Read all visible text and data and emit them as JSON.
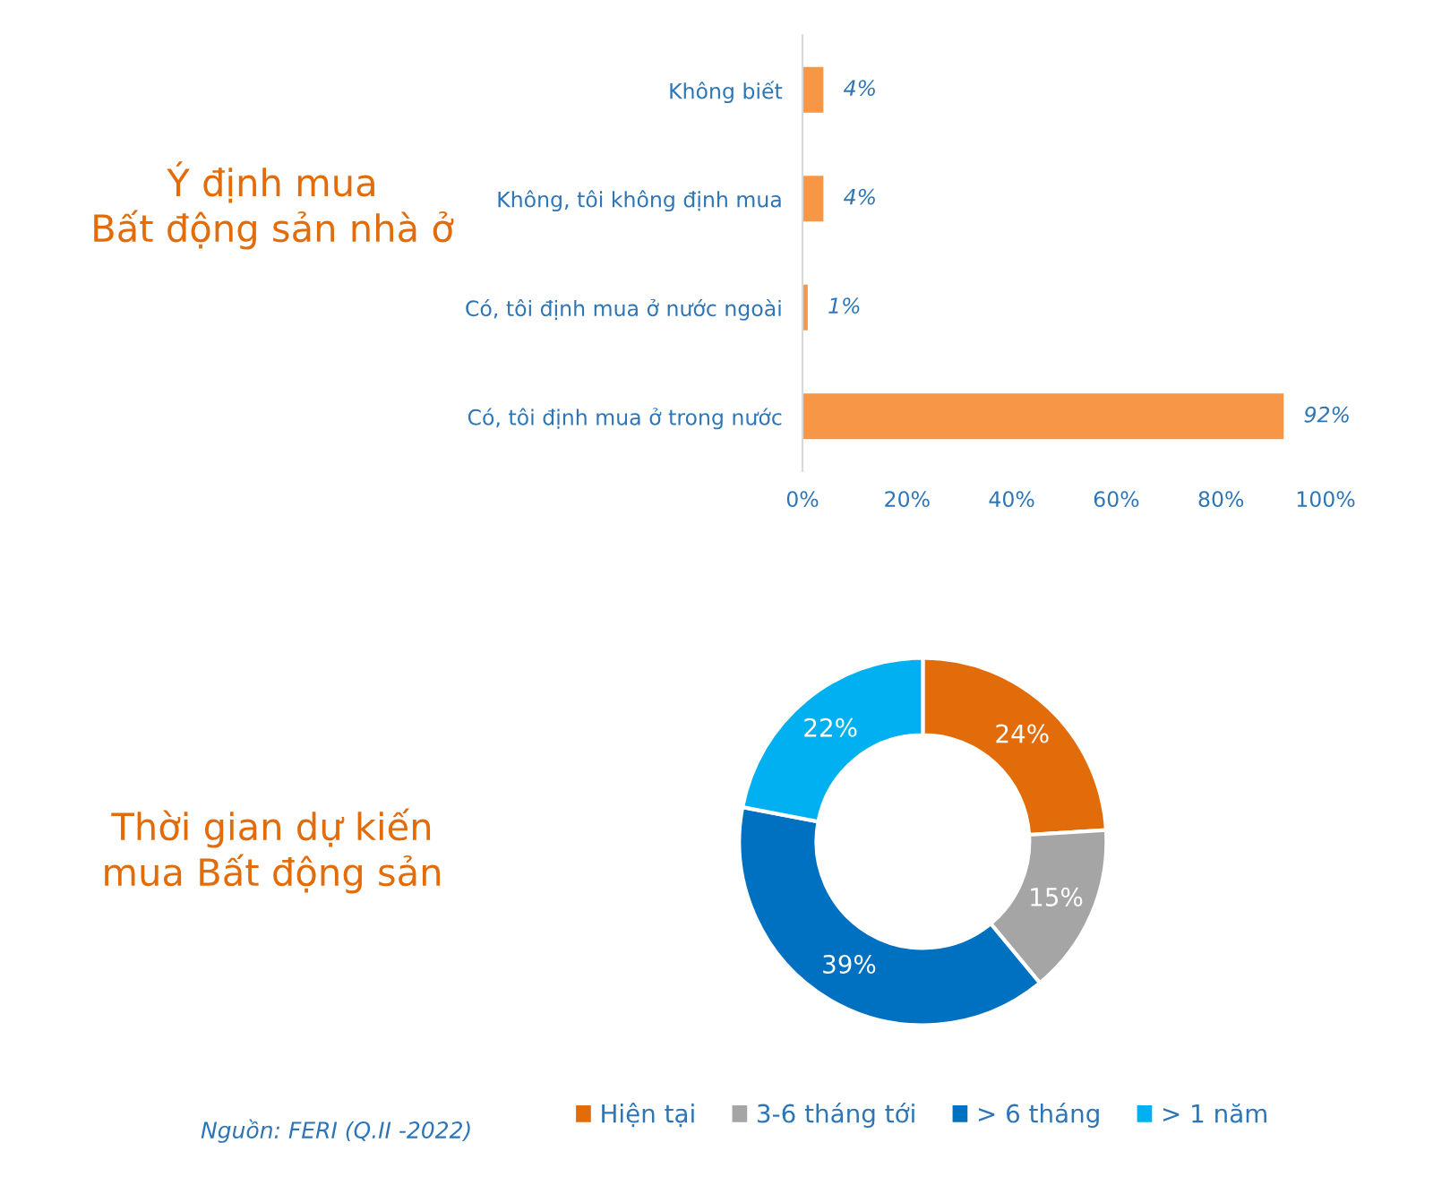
{
  "chart_data": [
    {
      "type": "bar",
      "orientation": "horizontal",
      "title": "Ý định mua\nBất động sản nhà ở",
      "categories": [
        "Không biết",
        "Không, tôi không định mua",
        "Có, tôi định mua ở nước ngoài",
        "Có, tôi định mua ở trong nước"
      ],
      "values": [
        4,
        4,
        1,
        92
      ],
      "value_labels": [
        "4%",
        "4%",
        "1%",
        "92%"
      ],
      "color": "#f79646",
      "xlim": [
        0,
        100
      ],
      "xticks": [
        {
          "value": 0,
          "label": "0%"
        },
        {
          "value": 20,
          "label": "20%"
        },
        {
          "value": 40,
          "label": "40%"
        },
        {
          "value": 60,
          "label": "60%"
        },
        {
          "value": 80,
          "label": "80%"
        },
        {
          "value": 100,
          "label": "100%"
        }
      ]
    },
    {
      "type": "donut",
      "title": "Thời gian dự kiến\nmua Bất động sản",
      "categories": [
        "Hiện tại",
        "3-6 tháng tới",
        "> 6 tháng",
        "> 1 năm"
      ],
      "values": [
        24,
        15,
        39,
        22
      ],
      "value_labels": [
        "24%",
        "15%",
        "39%",
        "22%"
      ],
      "colors": [
        "#e36c0a",
        "#a5a5a5",
        "#0070c0",
        "#00b0f0"
      ],
      "legend": "bottom",
      "annotations": [
        "Nguồn: FERI (Q.II -2022)"
      ]
    }
  ]
}
